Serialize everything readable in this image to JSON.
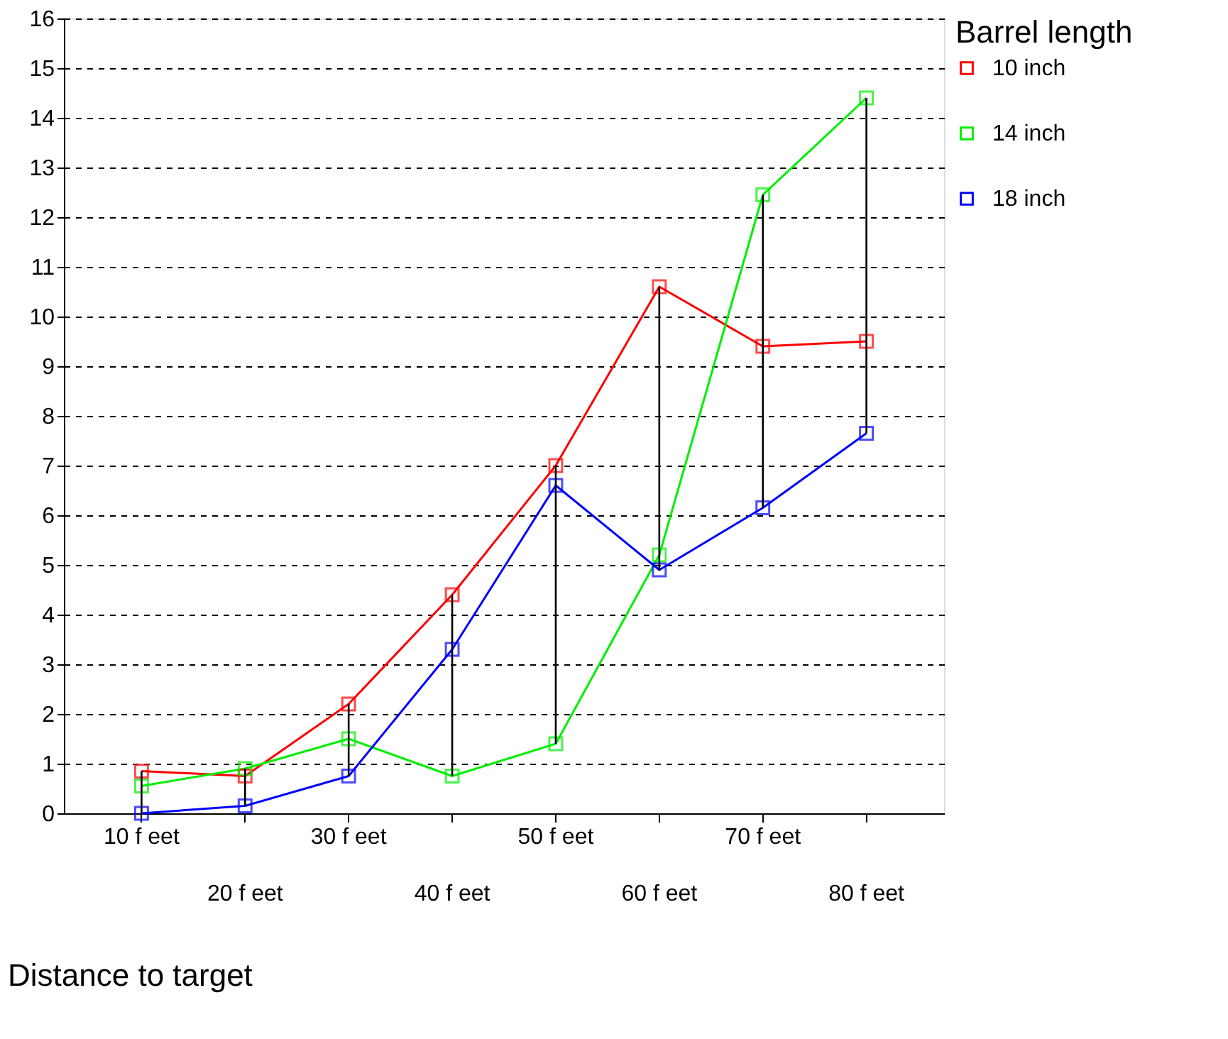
{
  "chart_data": {
    "type": "line",
    "xlabel": "Distance to target",
    "legend_title": "Barrel length",
    "categories": [
      "10 f eet",
      "20 f eet",
      "30 f eet",
      "40 f eet",
      "50 f eet",
      "60 f eet",
      "70 f eet",
      "80 f eet"
    ],
    "series": [
      {
        "name": "10 inch",
        "color": "#ff0000",
        "values": [
          0.85,
          0.75,
          2.2,
          4.4,
          7.0,
          10.6,
          9.4,
          9.5
        ]
      },
      {
        "name": "14 inch",
        "color": "#00ee00",
        "values": [
          0.55,
          0.9,
          1.5,
          0.75,
          1.4,
          5.2,
          12.45,
          14.4
        ]
      },
      {
        "name": "18 inch",
        "color": "#0000ff",
        "values": [
          0.0,
          0.15,
          0.75,
          3.3,
          6.6,
          4.9,
          6.15,
          7.65
        ]
      },
      {
        "type": "bar",
        "color": "#000000",
        "base": [
          0.0,
          0.15,
          0.75,
          0.75,
          1.4,
          4.9,
          6.15,
          7.65
        ],
        "values": [
          0.85,
          0.75,
          1.45,
          3.65,
          5.6,
          5.7,
          6.3,
          6.75
        ]
      }
    ],
    "ylim": [
      0,
      16
    ],
    "yticks": [
      0,
      1,
      2,
      3,
      4,
      5,
      6,
      7,
      8,
      9,
      10,
      11,
      12,
      13,
      14,
      15,
      16
    ],
    "grid": "y",
    "legend": "right",
    "marker": "square",
    "line_style": "solid"
  }
}
